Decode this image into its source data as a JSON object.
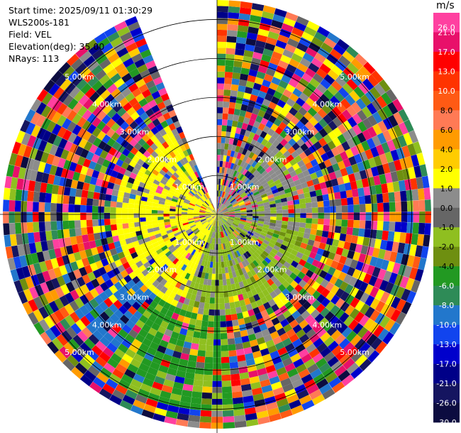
{
  "info": {
    "start_time": "Start time: 2025/09/11 01:30:29",
    "instrument": "WLS200s-181",
    "field": "Field: VEL",
    "elevation": "Elevation(deg): 35.00",
    "nrays": "NRays: 113"
  },
  "colorbar": {
    "unit": "m/s",
    "ticks": [
      "26.0",
      "21.0",
      "17.0",
      "13.0",
      "10.0",
      "8.0",
      "6.0",
      "4.0",
      "2.0",
      "1.0",
      "0.0",
      "-1.0",
      "-2.0",
      "-4.0",
      "-6.0",
      "-8.0",
      "-10.0",
      "-13.0",
      "-17.0",
      "-21.0",
      "-26.0",
      "-30.0"
    ],
    "colors": [
      "#ff40a0",
      "#e8106a",
      "#ff0000",
      "#ff3300",
      "#ff5a14",
      "#ff7a55",
      "#ff9b00",
      "#ffcc00",
      "#ffff00",
      "#8c8c8c",
      "#666666",
      "#8fbf20",
      "#6e8f10",
      "#229922",
      "#2e8b57",
      "#2277cc",
      "#1144ee",
      "#0000cc",
      "#000088",
      "#151560",
      "#0c0c40"
    ]
  },
  "chart_data": {
    "type": "heatmap",
    "title": "",
    "field": "VEL",
    "units": "m/s",
    "range_rings_km": [
      1.0,
      2.0,
      3.0,
      4.0,
      5.0
    ],
    "ring_labels": [
      "1.00km",
      "2.00km",
      "3.00km",
      "4.00km",
      "5.00km"
    ],
    "elevation_deg": 35.0,
    "n_rays": 113,
    "missing_sector_azimuth_deg": [
      337,
      360
    ],
    "vmin": -30.0,
    "vmax": 30.0
  }
}
